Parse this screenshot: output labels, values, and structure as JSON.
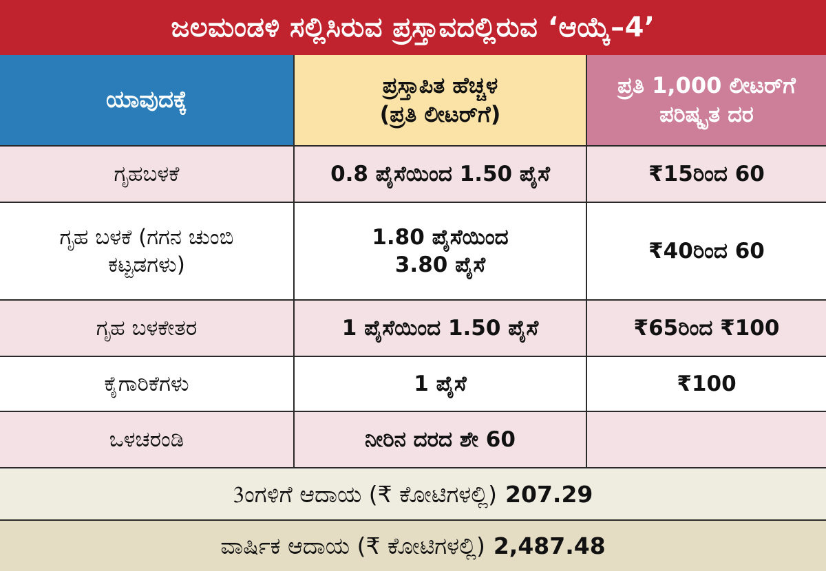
{
  "title": "ಜಲಮಂಡಳಿ ಸಲ್ಲಿಸಿರುವ ಪ್ರಸ್ತಾವದಲ್ಲಿರುವ ‘ಆಯ್ಕೆ–4’",
  "headers": {
    "col1": "ಯಾವುದಕ್ಕೆ",
    "col2": "ಪ್ರಸ್ತಾಪಿತ ಹೆಚ್ಚಳ\n(ಪ್ರತಿ ಲೀಟರ್‌ಗೆ)",
    "col3": "ಪ್ರತಿ 1,000 ಲೀಟರ್‌ಗೆ\nಪರಿಷ್ಕೃತ ದರ"
  },
  "rows": [
    {
      "category": "ಗೃಹಬಳಕೆ",
      "increase": "0.8 ಪೈಸೆಯಿಂದ 1.50 ಪೈಸೆ",
      "rate": "₹15ರಿಂದ 60"
    },
    {
      "category": "ಗೃಹ ಬಳಕೆ (ಗಗನ ಚುಂಬಿ\nಕಟ್ಟಡಗಳು)",
      "increase": "1.80 ಪೈಸೆಯಿಂದ\n3.80 ಪೈಸೆ",
      "rate": "₹40ರಿಂದ 60"
    },
    {
      "category": "ಗೃಹ ಬಳಕೇತರ",
      "increase": "1 ಪೈಸೆಯಿಂದ 1.50 ಪೈಸೆ",
      "rate": "₹65ರಿಂದ ₹100"
    },
    {
      "category": "ಕೈಗಾರಿಕೆಗಳು",
      "increase": "1 ಪೈಸೆ",
      "rate": "₹100"
    },
    {
      "category": "ಒಳಚರಂಡಿ",
      "increase": "ನೀರಿನ ದರದ ಶೇ 60",
      "rate": ""
    }
  ],
  "summary": {
    "monthly_label": "3ಂಗಳಿಗೆ ಆದಾಯ (₹ ಕೋಟಿಗಳಲ್ಲಿ)",
    "monthly_value": "207.29",
    "annual_label": "ವಾರ್ಷಿಕ ಆದಾಯ (₹ ಕೋಟಿಗಳಲ್ಲಿ)",
    "annual_value": "2,487.48"
  },
  "colors": {
    "title_bg": "#c0232d",
    "header_col1_bg": "#2a7db8",
    "header_col2_bg": "#fbe3a8",
    "header_col3_bg": "#cd7f9a",
    "row_pink": "#f3e1e6",
    "summary_bg_1": "#efece0",
    "summary_bg_2": "#e4ddc4"
  }
}
